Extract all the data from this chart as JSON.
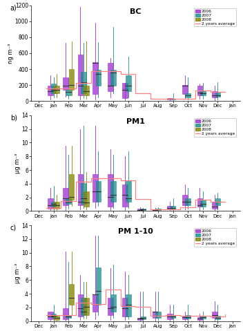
{
  "months": [
    "Dec",
    "Jan",
    "Feb",
    "Mar",
    "Apr",
    "May",
    "Jun",
    "Jul",
    "Aug",
    "Sep",
    "Oct",
    "Nov",
    "Dec",
    "Jan"
  ],
  "month_positions": [
    0,
    1,
    2,
    3,
    4,
    5,
    6,
    7,
    8,
    9,
    10,
    11,
    12,
    13
  ],
  "colors": {
    "2006": "#9B30CC",
    "2007": "#1A8A8A",
    "2008": "#808000",
    "avg": "#FF8080"
  },
  "panel_a": {
    "title": "BC",
    "ylabel": "ng m⁻³",
    "ylim": [
      0,
      1200
    ],
    "yticks": [
      0,
      200,
      400,
      600,
      800,
      1000,
      1200
    ],
    "boxes": {
      "2006": {
        "positions": [
          1,
          2,
          3,
          4,
          5,
          6,
          9,
          10,
          11,
          12
        ],
        "q1": [
          70,
          140,
          75,
          90,
          120,
          35,
          18,
          85,
          75,
          45
        ],
        "median": [
          120,
          190,
          190,
          480,
          190,
          140,
          28,
          190,
          105,
          75
        ],
        "q3": [
          195,
          300,
          580,
          490,
          480,
          230,
          38,
          205,
          195,
          125
        ],
        "whislo": [
          18,
          55,
          18,
          18,
          45,
          8,
          4,
          28,
          28,
          12
        ],
        "whishi": [
          320,
          730,
          1180,
          980,
          540,
          45,
          28,
          320,
          215,
          195
        ]
      },
      "2007": {
        "positions": [
          1,
          2,
          3,
          4,
          5,
          6,
          9,
          10,
          11,
          12
        ],
        "q1": [
          95,
          75,
          95,
          195,
          195,
          125,
          22,
          45,
          70,
          50
        ],
        "median": [
          145,
          115,
          235,
          340,
          360,
          195,
          28,
          75,
          95,
          70
        ],
        "q3": [
          215,
          145,
          370,
          390,
          390,
          320,
          32,
          95,
          125,
          105
        ],
        "whislo": [
          45,
          28,
          38,
          45,
          95,
          45,
          8,
          18,
          28,
          18
        ],
        "whishi": [
          300,
          290,
          730,
          740,
          930,
          560,
          95,
          300,
          225,
          235
        ]
      },
      "2008": {
        "positions": [
          1,
          2,
          3
        ],
        "q1": [
          95,
          145,
          75
        ],
        "median": [
          145,
          205,
          125
        ],
        "q3": [
          195,
          400,
          195
        ],
        "whislo": [
          45,
          75,
          28
        ],
        "whishi": [
          340,
          745,
          745
        ]
      }
    },
    "avg_line": {
      "x": [
        0.5,
        1.5,
        2.5,
        3.5,
        4.5,
        5.5,
        6.5,
        7.5,
        8.5,
        9.5,
        10.5,
        11.5,
        12.5
      ],
      "y": [
        160,
        160,
        230,
        375,
        375,
        340,
        100,
        25,
        25,
        30,
        130,
        115,
        115
      ]
    }
  },
  "panel_b": {
    "title": "PM1",
    "ylabel": "μg m⁻³",
    "ylim": [
      0,
      14
    ],
    "yticks": [
      0,
      2,
      4,
      6,
      8,
      10,
      12,
      14
    ],
    "boxes": {
      "2006": {
        "positions": [
          1,
          2,
          3,
          4,
          5,
          6,
          7,
          8,
          9,
          10,
          11,
          12
        ],
        "q1": [
          0.4,
          0.9,
          0.9,
          1.4,
          0.7,
          0.7,
          0.08,
          0.08,
          0.25,
          0.9,
          0.7,
          0.4
        ],
        "median": [
          0.9,
          1.9,
          1.4,
          2.9,
          2.1,
          2.4,
          0.18,
          0.18,
          0.45,
          1.4,
          0.9,
          0.7
        ],
        "q3": [
          1.9,
          3.4,
          5.4,
          5.4,
          5.4,
          3.9,
          0.35,
          0.25,
          0.75,
          2.4,
          1.9,
          1.4
        ],
        "whislo": [
          0.08,
          0.18,
          0.25,
          0.45,
          0.18,
          0.18,
          0.0,
          0.0,
          0.08,
          0.25,
          0.18,
          0.08
        ],
        "whishi": [
          3.4,
          9.5,
          12.0,
          12.5,
          9.0,
          8.0,
          0.55,
          0.45,
          1.4,
          3.9,
          3.4,
          2.4
        ]
      },
      "2007": {
        "positions": [
          1,
          2,
          3,
          4,
          5,
          6,
          7,
          8,
          9,
          10,
          11,
          12
        ],
        "q1": [
          0.7,
          1.1,
          1.1,
          1.4,
          1.4,
          1.4,
          0.18,
          0.18,
          0.25,
          0.9,
          0.7,
          0.9
        ],
        "median": [
          1.1,
          1.4,
          1.9,
          2.9,
          2.4,
          1.9,
          0.25,
          0.25,
          0.45,
          1.4,
          1.1,
          1.4
        ],
        "q3": [
          1.4,
          1.9,
          4.1,
          4.4,
          4.4,
          4.4,
          0.35,
          0.35,
          0.75,
          1.9,
          1.7,
          1.9
        ],
        "whislo": [
          0.18,
          0.35,
          0.45,
          0.75,
          0.45,
          0.45,
          0.08,
          0.08,
          0.08,
          0.35,
          0.25,
          0.25
        ],
        "whishi": [
          3.7,
          8.2,
          12.5,
          8.7,
          8.2,
          8.7,
          0.45,
          0.55,
          1.9,
          3.4,
          2.9,
          2.7
        ]
      },
      "2008": {
        "positions": [
          1,
          2,
          3
        ],
        "q1": [
          0.4,
          1.7,
          0.7
        ],
        "median": [
          0.9,
          2.1,
          1.3
        ],
        "q3": [
          1.4,
          5.4,
          2.9
        ],
        "whislo": [
          0.18,
          0.75,
          0.25
        ],
        "whishi": [
          2.4,
          9.5,
          5.7
        ]
      }
    },
    "avg_line": {
      "x": [
        0.5,
        1.5,
        2.5,
        3.5,
        4.5,
        5.5,
        6.5,
        7.5,
        8.5,
        9.5,
        10.5,
        11.5,
        12.5
      ],
      "y": [
        0.5,
        1.5,
        4.3,
        4.8,
        4.8,
        4.5,
        1.8,
        0.25,
        0.25,
        0.55,
        1.7,
        1.4,
        1.4
      ]
    }
  },
  "panel_c": {
    "title": "PM 1-10",
    "ylabel": "μg m⁻³",
    "ylim": [
      0,
      14
    ],
    "yticks": [
      0,
      2,
      4,
      6,
      8,
      10,
      12,
      14
    ],
    "boxes": {
      "2006": {
        "positions": [
          1,
          2,
          3,
          4,
          5,
          6,
          7,
          8,
          9,
          10,
          11,
          12
        ],
        "q1": [
          0.25,
          0.25,
          0.7,
          1.4,
          0.9,
          0.7,
          0.18,
          0.45,
          0.25,
          0.25,
          0.18,
          0.45
        ],
        "median": [
          0.7,
          0.9,
          1.9,
          3.9,
          1.9,
          1.9,
          0.35,
          1.4,
          0.65,
          0.55,
          0.35,
          0.9
        ],
        "q3": [
          1.4,
          1.9,
          3.9,
          3.9,
          3.4,
          3.4,
          0.45,
          1.4,
          1.1,
          0.75,
          0.55,
          1.4
        ],
        "whislo": [
          0.0,
          0.0,
          0.18,
          0.25,
          0.18,
          0.18,
          0.0,
          0.08,
          0.0,
          0.08,
          0.0,
          0.08
        ],
        "whishi": [
          1.4,
          10.2,
          6.7,
          12.5,
          7.7,
          7.2,
          4.3,
          4.3,
          2.4,
          1.4,
          1.1,
          2.9
        ]
      },
      "2007": {
        "positions": [
          1,
          2,
          3,
          4,
          5,
          6,
          7,
          8,
          9,
          10,
          11,
          12
        ],
        "q1": [
          0.45,
          0.45,
          0.9,
          2.4,
          1.4,
          0.7,
          0.25,
          0.45,
          0.45,
          0.35,
          0.35,
          0.25
        ],
        "median": [
          0.75,
          0.65,
          1.4,
          4.4,
          2.1,
          2.4,
          0.45,
          0.75,
          0.65,
          0.55,
          0.55,
          0.45
        ],
        "q3": [
          1.1,
          0.9,
          3.4,
          7.8,
          3.9,
          3.9,
          0.65,
          1.4,
          0.9,
          0.9,
          0.75,
          0.75
        ],
        "whislo": [
          0.08,
          0.08,
          0.35,
          0.9,
          0.45,
          0.25,
          0.08,
          0.18,
          0.08,
          0.08,
          0.08,
          0.08
        ],
        "whishi": [
          2.4,
          8.7,
          5.7,
          12.5,
          8.2,
          6.7,
          4.3,
          4.3,
          2.4,
          2.4,
          1.4,
          2.4
        ]
      },
      "2008": {
        "positions": [
          1,
          2,
          3
        ],
        "q1": [
          0.18,
          2.4,
          0.9
        ],
        "median": [
          0.45,
          3.4,
          2.1
        ],
        "q3": [
          0.75,
          5.4,
          3.4
        ],
        "whislo": [
          0.0,
          0.9,
          0.35
        ],
        "whishi": [
          0.9,
          10.2,
          5.7
        ]
      }
    },
    "avg_line": {
      "x": [
        0.5,
        1.5,
        2.5,
        3.5,
        4.5,
        5.5,
        6.5,
        7.5,
        8.5,
        9.5,
        10.5,
        11.5,
        12.5
      ],
      "y": [
        0.9,
        0.9,
        2.7,
        2.5,
        4.6,
        2.2,
        2.1,
        0.75,
        0.9,
        0.75,
        0.75,
        0.65,
        1.0
      ]
    }
  }
}
